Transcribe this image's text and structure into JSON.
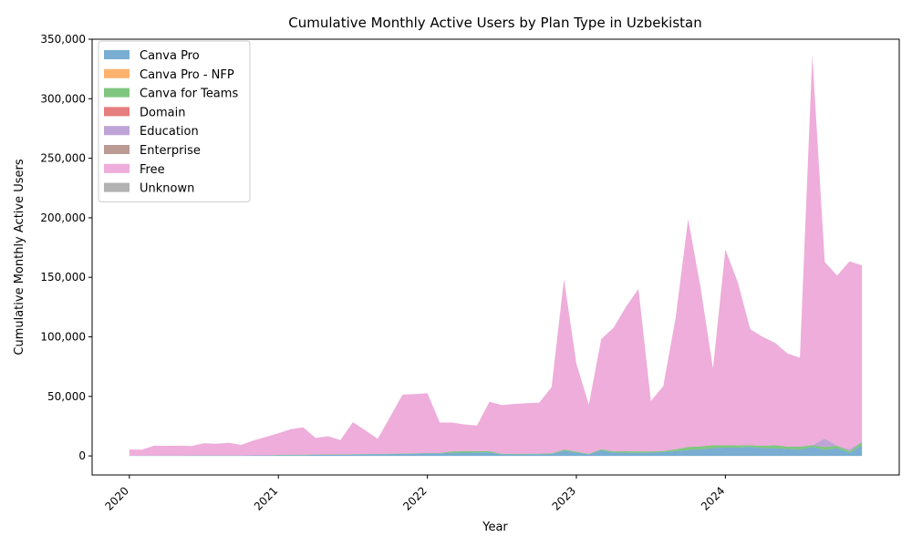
{
  "chart_data": {
    "type": "area",
    "stacked": true,
    "title": "Cumulative Monthly Active Users by Plan Type in Uzbekistan",
    "xlabel": "Year",
    "ylabel": "Cumulative Monthly Active Users",
    "xlim": [
      "2019-10",
      "2025-03"
    ],
    "ylim": [
      -16000,
      350000
    ],
    "yticks": [
      0,
      50000,
      100000,
      150000,
      200000,
      250000,
      300000,
      350000
    ],
    "ytick_labels": [
      "0",
      "50,000",
      "100,000",
      "150,000",
      "200,000",
      "250,000",
      "300,000",
      "350,000"
    ],
    "xticks": [
      "2020-01",
      "2021-01",
      "2022-01",
      "2023-01",
      "2024-01"
    ],
    "xtick_labels": [
      "2020",
      "2021",
      "2022",
      "2023",
      "2024"
    ],
    "grid": false,
    "legend_position": "top-left",
    "x": [
      "2020-01",
      "2020-02",
      "2020-03",
      "2020-04",
      "2020-05",
      "2020-06",
      "2020-07",
      "2020-08",
      "2020-09",
      "2020-10",
      "2020-11",
      "2020-12",
      "2021-01",
      "2021-02",
      "2021-03",
      "2021-04",
      "2021-05",
      "2021-06",
      "2021-07",
      "2021-08",
      "2021-09",
      "2021-10",
      "2021-11",
      "2021-12",
      "2022-01",
      "2022-02",
      "2022-03",
      "2022-04",
      "2022-05",
      "2022-06",
      "2022-07",
      "2022-08",
      "2022-09",
      "2022-10",
      "2022-11",
      "2022-12",
      "2023-01",
      "2023-02",
      "2023-03",
      "2023-04",
      "2023-05",
      "2023-06",
      "2023-07",
      "2023-08",
      "2023-09",
      "2023-10",
      "2023-11",
      "2023-12",
      "2024-01",
      "2024-02",
      "2024-03",
      "2024-04",
      "2024-05",
      "2024-06",
      "2024-07",
      "2024-08",
      "2024-09",
      "2024-10",
      "2024-11",
      "2024-12"
    ],
    "series": [
      {
        "name": "Canva Pro",
        "color": "#1f77b4",
        "values": [
          200,
          200,
          300,
          300,
          300,
          400,
          400,
          400,
          400,
          400,
          500,
          500,
          600,
          700,
          700,
          800,
          900,
          1000,
          1100,
          1200,
          1300,
          1500,
          1700,
          1900,
          2100,
          2200,
          2600,
          2800,
          2900,
          3000,
          1200,
          1300,
          1300,
          1400,
          1600,
          4500,
          2800,
          1200,
          4800,
          2800,
          2700,
          2500,
          2800,
          3200,
          4000,
          5000,
          5500,
          6500,
          7000,
          7000,
          7500,
          6500,
          6500,
          5800,
          5300,
          7500,
          5000,
          6500,
          2500,
          9000
        ]
      },
      {
        "name": "Canva Pro - NFP",
        "color": "#ff7f0e",
        "values": [
          0,
          0,
          0,
          0,
          0,
          0,
          0,
          0,
          0,
          0,
          0,
          0,
          0,
          0,
          0,
          0,
          0,
          0,
          0,
          0,
          0,
          0,
          0,
          0,
          0,
          0,
          0,
          0,
          0,
          0,
          0,
          0,
          0,
          0,
          0,
          0,
          0,
          0,
          0,
          0,
          0,
          0,
          0,
          0,
          0,
          0,
          0,
          0,
          0,
          0,
          0,
          0,
          0,
          0,
          0,
          0,
          0,
          0,
          0,
          0
        ]
      },
      {
        "name": "Canva for Teams",
        "color": "#2ca02c",
        "values": [
          0,
          0,
          0,
          0,
          0,
          0,
          0,
          0,
          0,
          0,
          0,
          0,
          200,
          300,
          300,
          300,
          300,
          300,
          300,
          300,
          300,
          300,
          300,
          300,
          300,
          300,
          1200,
          1300,
          1100,
          1000,
          500,
          500,
          500,
          500,
          500,
          800,
          800,
          500,
          800,
          1000,
          1200,
          1300,
          1000,
          1000,
          1500,
          2500,
          2500,
          2500,
          2000,
          1800,
          1500,
          2000,
          2500,
          2000,
          2500,
          1500,
          2500,
          2000,
          1500,
          2500
        ]
      },
      {
        "name": "Domain",
        "color": "#d62728",
        "values": [
          0,
          0,
          0,
          0,
          0,
          0,
          0,
          0,
          0,
          0,
          0,
          0,
          0,
          0,
          0,
          0,
          0,
          0,
          0,
          0,
          0,
          0,
          0,
          0,
          0,
          0,
          0,
          0,
          0,
          0,
          0,
          0,
          0,
          0,
          0,
          0,
          0,
          0,
          0,
          0,
          0,
          0,
          0,
          0,
          0,
          0,
          0,
          0,
          0,
          0,
          0,
          0,
          0,
          0,
          0,
          0,
          0,
          0,
          0,
          0
        ]
      },
      {
        "name": "Education",
        "color": "#9467bd",
        "values": [
          0,
          0,
          0,
          0,
          0,
          0,
          0,
          0,
          0,
          0,
          0,
          0,
          0,
          0,
          0,
          0,
          0,
          0,
          0,
          0,
          0,
          0,
          0,
          0,
          0,
          0,
          0,
          0,
          0,
          0,
          0,
          0,
          0,
          0,
          0,
          0,
          0,
          0,
          0,
          0,
          0,
          0,
          0,
          0,
          0,
          0,
          0,
          0,
          0,
          0,
          0,
          0,
          0,
          0,
          0,
          0,
          7000,
          0,
          1500,
          500
        ]
      },
      {
        "name": "Enterprise",
        "color": "#8c564b",
        "values": [
          0,
          0,
          0,
          0,
          0,
          0,
          0,
          0,
          0,
          0,
          0,
          0,
          0,
          0,
          0,
          0,
          0,
          0,
          0,
          0,
          0,
          0,
          0,
          0,
          0,
          0,
          0,
          0,
          0,
          0,
          0,
          0,
          0,
          0,
          0,
          0,
          0,
          0,
          0,
          0,
          0,
          0,
          0,
          0,
          0,
          0,
          0,
          0,
          0,
          0,
          0,
          0,
          0,
          0,
          0,
          0,
          0,
          0,
          0,
          0
        ]
      },
      {
        "name": "Free",
        "color": "#e377c2",
        "values": [
          5200,
          5000,
          8300,
          8200,
          8300,
          7900,
          10200,
          9800,
          10600,
          8900,
          12500,
          15500,
          18200,
          21500,
          23000,
          14000,
          15300,
          12000,
          27000,
          20000,
          12700,
          31000,
          49500,
          49800,
          50200,
          25500,
          24200,
          22300,
          21500,
          41500,
          41000,
          41800,
          42500,
          42800,
          55500,
          143000,
          74000,
          41300,
          92500,
          104000,
          121500,
          136500,
          42300,
          54500,
          111000,
          191500,
          133500,
          64500,
          164500,
          137000,
          97500,
          91500,
          86000,
          78200,
          74700,
          328000,
          148500,
          143000,
          158000,
          148000
        ]
      },
      {
        "name": "Unknown",
        "color": "#7f7f7f",
        "values": [
          0,
          0,
          0,
          0,
          0,
          0,
          0,
          0,
          0,
          0,
          0,
          0,
          0,
          0,
          0,
          0,
          0,
          0,
          0,
          0,
          0,
          0,
          0,
          0,
          0,
          0,
          0,
          0,
          0,
          0,
          0,
          0,
          0,
          0,
          0,
          0,
          0,
          0,
          0,
          0,
          0,
          0,
          0,
          0,
          0,
          0,
          0,
          0,
          0,
          0,
          0,
          0,
          0,
          0,
          0,
          0,
          0,
          0,
          0,
          0
        ]
      }
    ]
  }
}
